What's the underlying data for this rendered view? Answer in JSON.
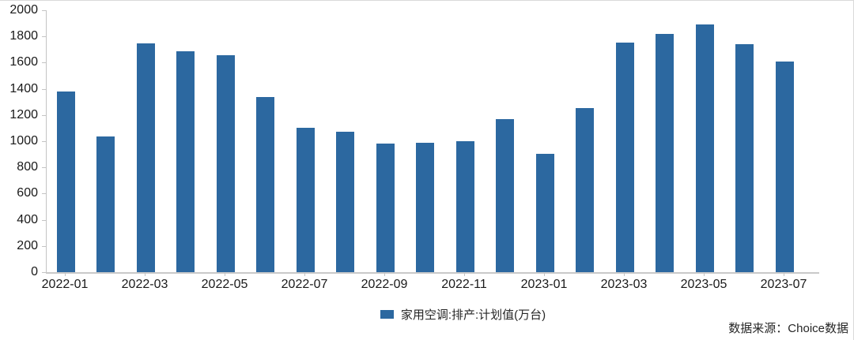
{
  "chart_data": {
    "type": "bar",
    "title": "",
    "xlabel": "",
    "ylabel": "",
    "categories": [
      "2022-01",
      "2022-02",
      "2022-03",
      "2022-04",
      "2022-05",
      "2022-06",
      "2022-07",
      "2022-08",
      "2022-09",
      "2022-10",
      "2022-11",
      "2022-12",
      "2023-01",
      "2023-02",
      "2023-03",
      "2023-04",
      "2023-05",
      "2023-06",
      "2023-07"
    ],
    "values": [
      1380,
      1035,
      1745,
      1685,
      1655,
      1340,
      1100,
      1075,
      980,
      985,
      1000,
      1170,
      905,
      1255,
      1755,
      1820,
      1890,
      1740,
      1610
    ],
    "x_tick_labels": [
      "2022-01",
      "2022-03",
      "2022-05",
      "2022-07",
      "2022-09",
      "2022-11",
      "2023-01",
      "2023-03",
      "2023-05",
      "2023-07"
    ],
    "y_ticks": [
      0,
      200,
      400,
      600,
      800,
      1000,
      1200,
      1400,
      1600,
      1800,
      2000
    ],
    "ylim": [
      0,
      2000
    ],
    "grid": false,
    "legend_label": "家用空调:排产:计划值(万台)",
    "legend_position": "bottom-center",
    "bar_color": "#2c68a0"
  },
  "footer": {
    "source": "数据来源：Choice数据"
  }
}
